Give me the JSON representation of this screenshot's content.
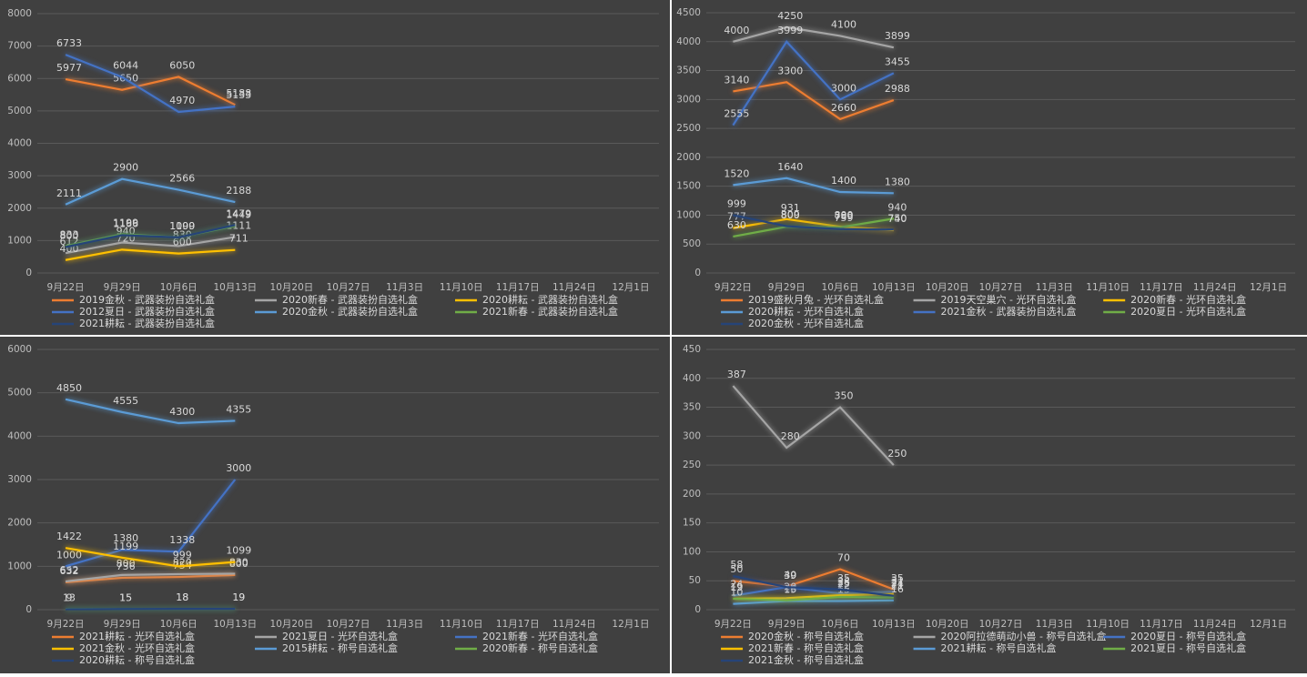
{
  "chart_data": [
    {
      "type": "line",
      "categories": [
        "9月22日",
        "9月29日",
        "10月6日",
        "10月13日",
        "10月20日",
        "10月27日",
        "11月3日",
        "11月10日",
        "11月17日",
        "11月24日",
        "12月1日"
      ],
      "ylim": [
        0,
        8000
      ],
      "yticks": [
        0,
        1000,
        2000,
        3000,
        4000,
        5000,
        6000,
        7000,
        8000
      ],
      "grid": true,
      "series": [
        {
          "name": "2019金秋 - 武器装扮自选礼盒",
          "color": "#ed7d31",
          "values": [
            5977,
            5650,
            6050,
            5188,
            null,
            null,
            null,
            null,
            null,
            null,
            null
          ]
        },
        {
          "name": "2020新春 - 武器装扮自选礼盒",
          "color": "#a5a5a5",
          "values": [
            612,
            940,
            830,
            1111,
            null,
            null,
            null,
            null,
            null,
            null,
            null
          ]
        },
        {
          "name": "2020耕耘 - 武器装扮自选礼盒",
          "color": "#ffc000",
          "values": [
            400,
            720,
            600,
            711,
            null,
            null,
            null,
            null,
            null,
            null,
            null
          ]
        },
        {
          "name": "2012夏日 - 武器装扮自选礼盒",
          "color": "#4472c4",
          "values": [
            6733,
            6044,
            4970,
            5133,
            null,
            null,
            null,
            null,
            null,
            null,
            null
          ]
        },
        {
          "name": "2020金秋 - 武器装扮自选礼盒",
          "color": "#5b9bd5",
          "values": [
            2111,
            2900,
            2566,
            2188,
            null,
            null,
            null,
            null,
            null,
            null,
            null
          ]
        },
        {
          "name": "2021新春 - 武器装扮自选礼盒",
          "color": "#70ad47",
          "values": [
            833,
            1199,
            1100,
            1449,
            null,
            null,
            null,
            null,
            null,
            null,
            null
          ]
        },
        {
          "name": "2021耕耘 - 武器装扮自选礼盒",
          "color": "#264478",
          "values": [
            800,
            1166,
            1099,
            1479,
            null,
            null,
            null,
            null,
            null,
            null,
            null
          ]
        }
      ]
    },
    {
      "type": "line",
      "categories": [
        "9月22日",
        "9月29日",
        "10月6日",
        "10月13日",
        "10月20日",
        "10月27日",
        "11月3日",
        "11月10日",
        "11月17日",
        "11月24日",
        "12月1日"
      ],
      "ylim": [
        0,
        4500
      ],
      "yticks": [
        0,
        500,
        1000,
        1500,
        2000,
        2500,
        3000,
        3500,
        4000,
        4500
      ],
      "grid": true,
      "series": [
        {
          "name": "2019盛秋月兔 - 光环自选礼盒",
          "color": "#ed7d31",
          "values": [
            3140,
            3300,
            2660,
            2988,
            null,
            null,
            null,
            null,
            null,
            null,
            null
          ]
        },
        {
          "name": "2019天空巢穴 - 光环自选礼盒",
          "color": "#a5a5a5",
          "values": [
            4000,
            4250,
            4100,
            3899,
            null,
            null,
            null,
            null,
            null,
            null,
            null
          ]
        },
        {
          "name": "2020新春 - 光环自选礼盒",
          "color": "#ffc000",
          "values": [
            777,
            931,
            800,
            740,
            null,
            null,
            null,
            null,
            null,
            null,
            null
          ]
        },
        {
          "name": "2020耕耘 - 光环自选礼盒",
          "color": "#5b9bd5",
          "values": [
            1520,
            1640,
            1400,
            1380,
            null,
            null,
            null,
            null,
            null,
            null,
            null
          ]
        },
        {
          "name": "2021金秋 - 武器装扮自选礼盒",
          "color": "#4472c4",
          "values": [
            2555,
            3999,
            3000,
            3455,
            null,
            null,
            null,
            null,
            null,
            null,
            null
          ]
        },
        {
          "name": "2020夏日 - 光环自选礼盒",
          "color": "#70ad47",
          "values": [
            630,
            800,
            789,
            940,
            null,
            null,
            null,
            null,
            null,
            null,
            null
          ]
        },
        {
          "name": "2020金秋 - 光环自选礼盒",
          "color": "#264478",
          "values": [
            999,
            809,
            759,
            750,
            null,
            null,
            null,
            null,
            null,
            null,
            null
          ]
        }
      ]
    },
    {
      "type": "line",
      "categories": [
        "9月22日",
        "9月29日",
        "10月6日",
        "10月13日",
        "10月20日",
        "10月27日",
        "11月3日",
        "11月10日",
        "11月17日",
        "11月24日",
        "12月1日"
      ],
      "ylim": [
        0,
        6000
      ],
      "yticks": [
        0,
        1000,
        2000,
        3000,
        4000,
        5000,
        6000
      ],
      "grid": true,
      "series": [
        {
          "name": "2021耕耘 - 光环自选礼盒",
          "color": "#ed7d31",
          "values": [
            632,
            736,
            754,
            800,
            null,
            null,
            null,
            null,
            null,
            null,
            null
          ]
        },
        {
          "name": "2021夏日 - 光环自选礼盒",
          "color": "#a5a5a5",
          "values": [
            652,
            800,
            820,
            830,
            null,
            null,
            null,
            null,
            null,
            null,
            null
          ]
        },
        {
          "name": "2021新春 - 光环自选礼盒",
          "color": "#4472c4",
          "values": [
            1000,
            1380,
            1338,
            3000,
            null,
            null,
            null,
            null,
            null,
            null,
            null
          ]
        },
        {
          "name": "2021金秋 - 光环自选礼盒",
          "color": "#ffc000",
          "values": [
            1422,
            1199,
            999,
            1099,
            null,
            null,
            null,
            null,
            null,
            null,
            null
          ]
        },
        {
          "name": "2015耕耘 - 称号自选礼盒",
          "color": "#5b9bd5",
          "values": [
            4850,
            4555,
            4300,
            4355,
            null,
            null,
            null,
            null,
            null,
            null,
            null
          ]
        },
        {
          "name": "2020新春 - 称号自选礼盒",
          "color": "#70ad47",
          "values": [
            13,
            15,
            18,
            19,
            null,
            null,
            null,
            null,
            null,
            null,
            null
          ]
        },
        {
          "name": "2020耕耘 - 称号自选礼盒",
          "color": "#264478",
          "values": [
            9,
            15,
            18,
            19,
            null,
            null,
            null,
            null,
            null,
            null,
            null
          ]
        }
      ]
    },
    {
      "type": "line",
      "categories": [
        "9月22日",
        "9月29日",
        "10月6日",
        "10月13日",
        "10月20日",
        "10月27日",
        "11月3日",
        "11月10日",
        "11月17日",
        "11月24日",
        "12月1日"
      ],
      "ylim": [
        0,
        450
      ],
      "yticks": [
        0,
        50,
        100,
        150,
        200,
        250,
        300,
        350,
        400,
        450
      ],
      "grid": true,
      "series": [
        {
          "name": "2020金秋 - 称号自选礼盒",
          "color": "#ed7d31",
          "values": [
            50,
            40,
            70,
            35,
            null,
            null,
            null,
            null,
            null,
            null,
            null
          ]
        },
        {
          "name": "2020阿拉德萌动小兽 - 称号自选礼盒",
          "color": "#a5a5a5",
          "values": [
            387,
            280,
            350,
            250,
            null,
            null,
            null,
            null,
            null,
            null,
            null
          ]
        },
        {
          "name": "2020夏日 - 称号自选礼盒",
          "color": "#4472c4",
          "values": [
            24,
            39,
            28,
            31,
            null,
            null,
            null,
            null,
            null,
            null,
            null
          ]
        },
        {
          "name": "2021新春 - 称号自选礼盒",
          "color": "#ffc000",
          "values": [
            19,
            20,
            25,
            27,
            null,
            null,
            null,
            null,
            null,
            null,
            null
          ]
        },
        {
          "name": "2021耕耘 - 称号自选礼盒",
          "color": "#5b9bd5",
          "values": [
            10,
            15,
            15,
            16,
            null,
            null,
            null,
            null,
            null,
            null,
            null
          ]
        },
        {
          "name": "2021夏日 - 称号自选礼盒",
          "color": "#70ad47",
          "values": [
            19,
            16,
            22,
            21,
            null,
            null,
            null,
            null,
            null,
            null,
            null
          ]
        },
        {
          "name": "2021金秋 - 称号自选礼盒",
          "color": "#264478",
          "values": [
            58,
            39,
            35,
            24,
            null,
            null,
            null,
            null,
            null,
            null,
            null
          ]
        }
      ]
    }
  ]
}
